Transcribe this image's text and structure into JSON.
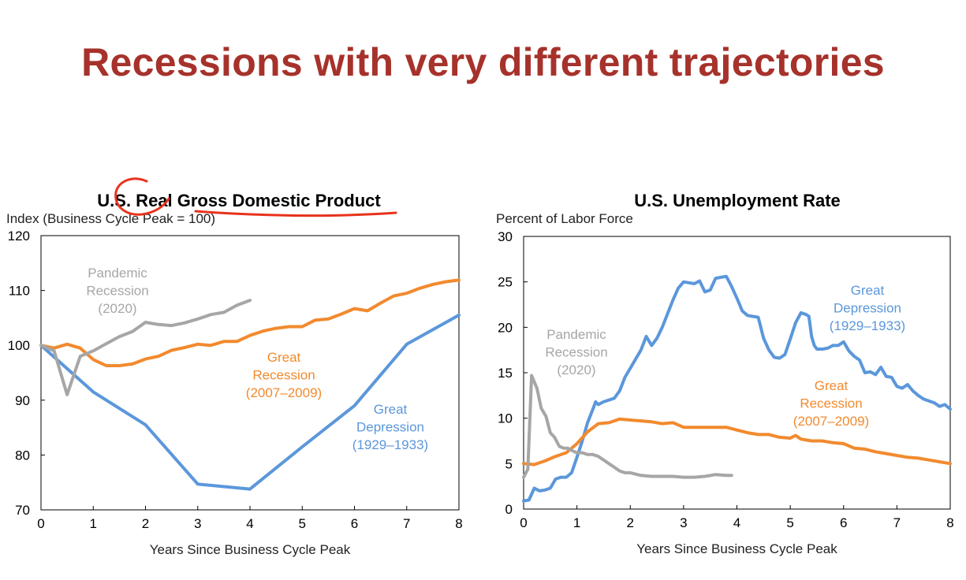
{
  "slide_title": "Recessions with very different trajectories",
  "colors": {
    "title": "#a6322b",
    "great_depression": "#5b97db",
    "great_recession": "#f28a2e",
    "pandemic": "#a6a6a6",
    "annotation": "#e8321c"
  },
  "chart_data": [
    {
      "id": "gdp",
      "type": "line",
      "title": "U.S. Real Gross Domestic Product",
      "ylabel": "Index (Business Cycle Peak = 100)",
      "xlabel": "Years Since Business Cycle Peak",
      "xlim": [
        0,
        8
      ],
      "ylim": [
        70,
        120
      ],
      "xticks": [
        0,
        1,
        2,
        3,
        4,
        5,
        6,
        7,
        8
      ],
      "yticks": [
        70,
        80,
        90,
        100,
        110,
        120
      ],
      "series": [
        {
          "key": "great_depression",
          "label": [
            "Great",
            "Depression",
            "(1929–1933)"
          ],
          "points": [
            [
              0,
              100
            ],
            [
              1,
              91.5
            ],
            [
              2,
              85.5
            ],
            [
              3,
              74.7
            ],
            [
              4,
              73.8
            ],
            [
              5,
              81.5
            ],
            [
              6,
              89
            ],
            [
              7,
              100.2
            ],
            [
              8,
              105.5
            ]
          ]
        },
        {
          "key": "great_recession",
          "label": [
            "Great",
            "Recession",
            "(2007–2009)"
          ],
          "points": [
            [
              0,
              100
            ],
            [
              0.25,
              99.5
            ],
            [
              0.5,
              100.2
            ],
            [
              0.75,
              99.5
            ],
            [
              1,
              97.4
            ],
            [
              1.25,
              96.3
            ],
            [
              1.5,
              96.3
            ],
            [
              1.75,
              96.6
            ],
            [
              2,
              97.5
            ],
            [
              2.25,
              98
            ],
            [
              2.5,
              99.1
            ],
            [
              2.75,
              99.6
            ],
            [
              3,
              100.2
            ],
            [
              3.25,
              100
            ],
            [
              3.5,
              100.7
            ],
            [
              3.75,
              100.7
            ],
            [
              4,
              101.8
            ],
            [
              4.25,
              102.6
            ],
            [
              4.5,
              103.1
            ],
            [
              4.75,
              103.4
            ],
            [
              5,
              103.4
            ],
            [
              5.25,
              104.6
            ],
            [
              5.5,
              104.8
            ],
            [
              5.75,
              105.7
            ],
            [
              6,
              106.7
            ],
            [
              6.25,
              106.3
            ],
            [
              6.5,
              107.7
            ],
            [
              6.75,
              109
            ],
            [
              7,
              109.5
            ],
            [
              7.25,
              110.4
            ],
            [
              7.5,
              111.1
            ],
            [
              7.75,
              111.6
            ],
            [
              8,
              111.9
            ]
          ]
        },
        {
          "key": "pandemic",
          "label": [
            "Pandemic",
            "Recession",
            "(2020)"
          ],
          "points": [
            [
              0,
              100
            ],
            [
              0.25,
              99
            ],
            [
              0.5,
              91
            ],
            [
              0.75,
              98
            ],
            [
              1,
              99
            ],
            [
              1.25,
              100.3
            ],
            [
              1.5,
              101.6
            ],
            [
              1.75,
              102.5
            ],
            [
              2,
              104.2
            ],
            [
              2.25,
              103.8
            ],
            [
              2.5,
              103.6
            ],
            [
              2.75,
              104.1
            ],
            [
              3,
              104.8
            ],
            [
              3.25,
              105.6
            ],
            [
              3.5,
              106
            ],
            [
              3.75,
              107.3
            ],
            [
              4,
              108.2
            ]
          ]
        }
      ]
    },
    {
      "id": "unemp",
      "type": "line",
      "title": "U.S. Unemployment Rate",
      "ylabel": "Percent of Labor Force",
      "xlabel": "Years Since Business Cycle Peak",
      "xlim": [
        0,
        8
      ],
      "ylim": [
        0,
        30
      ],
      "xticks": [
        0,
        1,
        2,
        3,
        4,
        5,
        6,
        7,
        8
      ],
      "yticks": [
        0,
        5,
        10,
        15,
        20,
        25,
        30
      ],
      "series": [
        {
          "key": "great_depression",
          "label": [
            "Great",
            "Depression",
            "(1929–1933)"
          ],
          "points": [
            [
              0,
              0.9
            ],
            [
              0.1,
              1
            ],
            [
              0.2,
              2.3
            ],
            [
              0.3,
              2
            ],
            [
              0.4,
              2.1
            ],
            [
              0.5,
              2.3
            ],
            [
              0.6,
              3.3
            ],
            [
              0.7,
              3.5
            ],
            [
              0.8,
              3.5
            ],
            [
              0.9,
              4
            ],
            [
              1,
              5.7
            ],
            [
              1.1,
              7.5
            ],
            [
              1.2,
              9.5
            ],
            [
              1.3,
              11
            ],
            [
              1.35,
              11.8
            ],
            [
              1.4,
              11.5
            ],
            [
              1.5,
              11.8
            ],
            [
              1.6,
              12
            ],
            [
              1.7,
              12.2
            ],
            [
              1.8,
              13
            ],
            [
              1.9,
              14.5
            ],
            [
              2,
              15.5
            ],
            [
              2.1,
              16.5
            ],
            [
              2.2,
              17.5
            ],
            [
              2.3,
              19
            ],
            [
              2.35,
              18.5
            ],
            [
              2.4,
              18
            ],
            [
              2.5,
              18.8
            ],
            [
              2.6,
              20
            ],
            [
              2.7,
              21.5
            ],
            [
              2.8,
              23
            ],
            [
              2.9,
              24.3
            ],
            [
              3,
              25
            ],
            [
              3.1,
              24.9
            ],
            [
              3.2,
              24.8
            ],
            [
              3.3,
              25.1
            ],
            [
              3.4,
              23.9
            ],
            [
              3.5,
              24.1
            ],
            [
              3.6,
              25.4
            ],
            [
              3.7,
              25.5
            ],
            [
              3.8,
              25.6
            ],
            [
              3.9,
              24.5
            ],
            [
              4,
              23.2
            ],
            [
              4.1,
              21.8
            ],
            [
              4.2,
              21.3
            ],
            [
              4.3,
              21.2
            ],
            [
              4.4,
              21.1
            ],
            [
              4.5,
              18.8
            ],
            [
              4.6,
              17.5
            ],
            [
              4.7,
              16.7
            ],
            [
              4.8,
              16.6
            ],
            [
              4.9,
              17
            ],
            [
              5,
              18.7
            ],
            [
              5.1,
              20.5
            ],
            [
              5.2,
              21.6
            ],
            [
              5.3,
              21.4
            ],
            [
              5.35,
              21.2
            ],
            [
              5.4,
              19
            ],
            [
              5.45,
              18
            ],
            [
              5.5,
              17.6
            ],
            [
              5.6,
              17.6
            ],
            [
              5.7,
              17.7
            ],
            [
              5.8,
              18
            ],
            [
              5.9,
              18
            ],
            [
              6,
              18.4
            ],
            [
              6.1,
              17.4
            ],
            [
              6.2,
              16.8
            ],
            [
              6.3,
              16.4
            ],
            [
              6.4,
              15
            ],
            [
              6.5,
              15.1
            ],
            [
              6.6,
              14.8
            ],
            [
              6.7,
              15.6
            ],
            [
              6.8,
              14.6
            ],
            [
              6.9,
              14.5
            ],
            [
              7,
              13.5
            ],
            [
              7.1,
              13.3
            ],
            [
              7.2,
              13.7
            ],
            [
              7.3,
              13
            ],
            [
              7.4,
              12.5
            ],
            [
              7.5,
              12.1
            ],
            [
              7.6,
              11.9
            ],
            [
              7.7,
              11.7
            ],
            [
              7.8,
              11.3
            ],
            [
              7.9,
              11.5
            ],
            [
              8,
              11
            ]
          ]
        },
        {
          "key": "great_recession",
          "label": [
            "Great",
            "Recession",
            "(2007–2009)"
          ],
          "points": [
            [
              0,
              5
            ],
            [
              0.2,
              4.9
            ],
            [
              0.4,
              5.3
            ],
            [
              0.6,
              5.8
            ],
            [
              0.8,
              6.2
            ],
            [
              1,
              7.2
            ],
            [
              1.2,
              8.5
            ],
            [
              1.4,
              9.4
            ],
            [
              1.6,
              9.5
            ],
            [
              1.8,
              9.9
            ],
            [
              2,
              9.8
            ],
            [
              2.2,
              9.7
            ],
            [
              2.4,
              9.6
            ],
            [
              2.6,
              9.4
            ],
            [
              2.8,
              9.5
            ],
            [
              3,
              9
            ],
            [
              3.2,
              9
            ],
            [
              3.4,
              9
            ],
            [
              3.6,
              9
            ],
            [
              3.8,
              9
            ],
            [
              4,
              8.7
            ],
            [
              4.2,
              8.4
            ],
            [
              4.4,
              8.2
            ],
            [
              4.6,
              8.2
            ],
            [
              4.8,
              7.9
            ],
            [
              5,
              7.8
            ],
            [
              5.1,
              8.1
            ],
            [
              5.2,
              7.7
            ],
            [
              5.4,
              7.5
            ],
            [
              5.6,
              7.5
            ],
            [
              5.8,
              7.3
            ],
            [
              6,
              7.2
            ],
            [
              6.2,
              6.7
            ],
            [
              6.4,
              6.6
            ],
            [
              6.6,
              6.3
            ],
            [
              6.8,
              6.1
            ],
            [
              7,
              5.9
            ],
            [
              7.2,
              5.7
            ],
            [
              7.4,
              5.6
            ],
            [
              7.6,
              5.4
            ],
            [
              7.8,
              5.2
            ],
            [
              8,
              5
            ]
          ]
        },
        {
          "key": "pandemic",
          "label": [
            "Pandemic",
            "Recession",
            "(2020)"
          ],
          "points": [
            [
              0,
              3.5
            ],
            [
              0.08,
              4.4
            ],
            [
              0.15,
              14.7
            ],
            [
              0.25,
              13.3
            ],
            [
              0.33,
              11.1
            ],
            [
              0.42,
              10.2
            ],
            [
              0.5,
              8.4
            ],
            [
              0.58,
              7.9
            ],
            [
              0.67,
              6.9
            ],
            [
              0.75,
              6.7
            ],
            [
              0.83,
              6.7
            ],
            [
              0.92,
              6.4
            ],
            [
              1,
              6.2
            ],
            [
              1.1,
              6.2
            ],
            [
              1.2,
              6
            ],
            [
              1.3,
              6
            ],
            [
              1.4,
              5.8
            ],
            [
              1.5,
              5.4
            ],
            [
              1.6,
              5
            ],
            [
              1.7,
              4.6
            ],
            [
              1.8,
              4.2
            ],
            [
              1.9,
              4
            ],
            [
              2,
              4
            ],
            [
              2.2,
              3.7
            ],
            [
              2.4,
              3.6
            ],
            [
              2.6,
              3.6
            ],
            [
              2.8,
              3.6
            ],
            [
              3,
              3.5
            ],
            [
              3.2,
              3.5
            ],
            [
              3.4,
              3.6
            ],
            [
              3.6,
              3.8
            ],
            [
              3.8,
              3.7
            ],
            [
              3.9,
              3.7
            ]
          ]
        }
      ]
    }
  ]
}
